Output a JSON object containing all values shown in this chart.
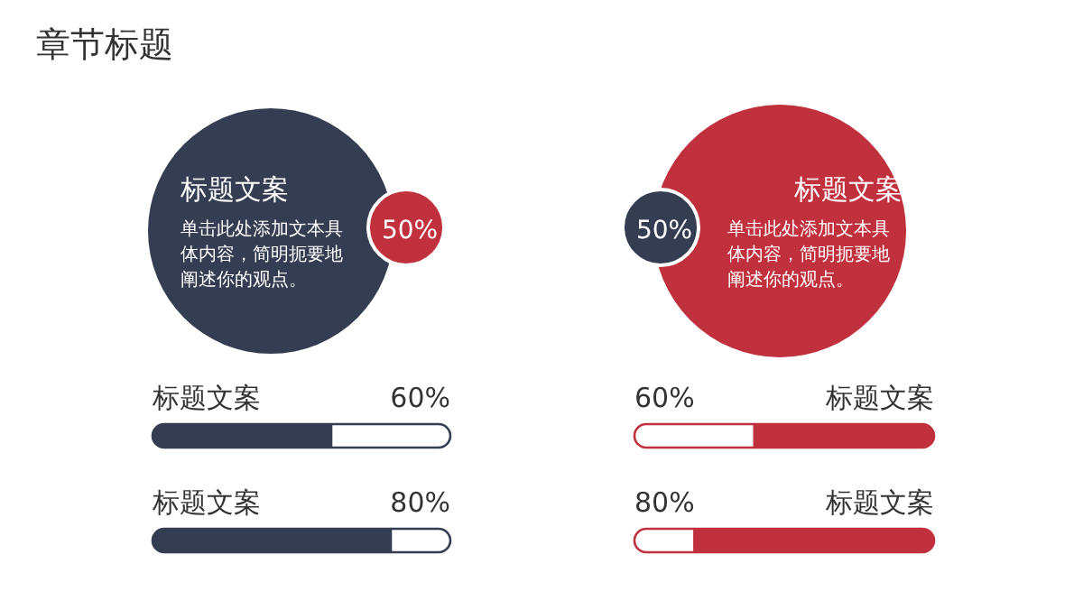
{
  "chart_data": [
    {
      "type": "other",
      "title": "章节标题"
    },
    {
      "type": "other",
      "title": "标题文案",
      "annotations": [
        "单击此处添加文本具体内容，简明扼要地阐述你的观点。",
        "50%"
      ],
      "colors": [
        "#353d52",
        "#c0313d"
      ]
    },
    {
      "type": "other",
      "title": "标题文案",
      "annotations": [
        "单击此处添加文本具体内容，简明扼要地阐述你的观点。",
        "50%"
      ],
      "colors": [
        "#c0313d",
        "#353d52"
      ]
    },
    {
      "type": "bar",
      "orientation": "horizontal",
      "stacked": true,
      "categories": [
        "标题文案",
        "标题文案"
      ],
      "xlim": [
        0,
        100
      ],
      "tick_labels": false,
      "series": [
        {
          "color": "#353d52",
          "values": [
            60,
            80
          ],
          "value_labels": [
            "60%",
            "80%"
          ]
        },
        {
          "color": "#ffffff",
          "values": [
            40,
            20
          ]
        }
      ]
    },
    {
      "type": "bar",
      "orientation": "horizontal",
      "stacked": true,
      "categories": [
        "标题文案",
        "标题文案"
      ],
      "xlim": [
        100,
        0
      ],
      "tick_labels": false,
      "series": [
        {
          "color": "#c0313d",
          "values": [
            60,
            80
          ],
          "value_labels": [
            "60%",
            "80%"
          ]
        },
        {
          "color": "#ffffff",
          "values": [
            40,
            20
          ]
        }
      ]
    }
  ]
}
